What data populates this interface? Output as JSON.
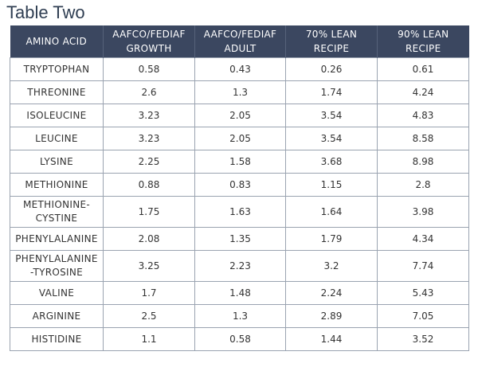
{
  "title": "Table Two",
  "colors": {
    "header_bg": "#3b4760",
    "highlight": "#d53a3a"
  },
  "headers": [
    "AMINO ACID",
    "AAFCO/FEDIAF GROWTH",
    "AAFCO/FEDIAF ADULT",
    "70% LEAN RECIPE",
    "90% LEAN RECIPE"
  ],
  "rows": [
    {
      "name": "TRYPTOPHAN",
      "growth": "0.58",
      "adult": "0.43",
      "lean70": "0.26",
      "lean90": "0.61",
      "lean70_highlight": true
    },
    {
      "name": "THREONINE",
      "growth": "2.6",
      "adult": "1.3",
      "lean70": "1.74",
      "lean90": "4.24",
      "lean70_highlight": true
    },
    {
      "name": "ISOLEUCINE",
      "growth": "3.23",
      "adult": "2.05",
      "lean70": "3.54",
      "lean90": "4.83",
      "lean70_highlight": false
    },
    {
      "name": "LEUCINE",
      "growth": "3.23",
      "adult": "2.05",
      "lean70": "3.54",
      "lean90": "8.58",
      "lean70_highlight": false
    },
    {
      "name": "LYSINE",
      "growth": "2.25",
      "adult": "1.58",
      "lean70": "3.68",
      "lean90": "8.98",
      "lean70_highlight": false
    },
    {
      "name": "METHIONINE",
      "growth": "0.88",
      "adult": "0.83",
      "lean70": "1.15",
      "lean90": "2.8",
      "lean70_highlight": false
    },
    {
      "name": "METHIONINE-CYSTINE",
      "growth": "1.75",
      "adult": "1.63",
      "lean70": "1.64",
      "lean90": "3.98",
      "lean70_highlight": true
    },
    {
      "name": "PHENYLALANINE",
      "growth": "2.08",
      "adult": "1.35",
      "lean70": "1.79",
      "lean90": "4.34",
      "lean70_highlight": true
    },
    {
      "name": "PHENYLALANINE -TYROSINE",
      "growth": "3.25",
      "adult": "2.23",
      "lean70": "3.2",
      "lean90": "7.74",
      "lean70_highlight": true
    },
    {
      "name": "VALINE",
      "growth": "1.7",
      "adult": "1.48",
      "lean70": "2.24",
      "lean90": "5.43",
      "lean70_highlight": false
    },
    {
      "name": "ARGININE",
      "growth": "2.5",
      "adult": "1.3",
      "lean70": "2.89",
      "lean90": "7.05",
      "lean70_highlight": false
    },
    {
      "name": "HISTIDINE",
      "growth": "1.1",
      "adult": "0.58",
      "lean70": "1.44",
      "lean90": "3.52",
      "lean70_highlight": false
    }
  ]
}
